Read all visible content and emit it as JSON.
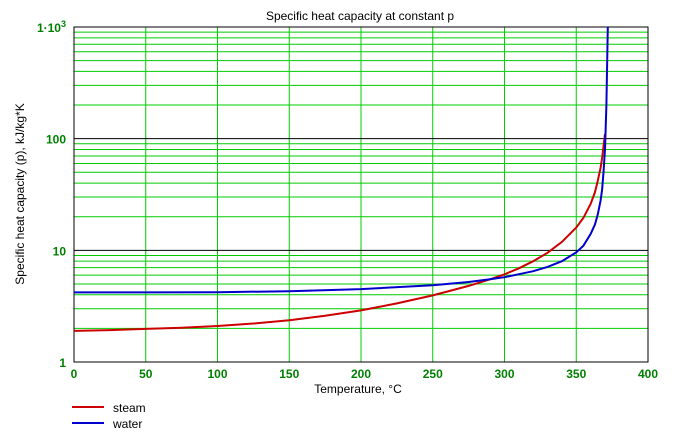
{
  "chart_data": {
    "type": "line",
    "title": "Specific heat capacity at constant p",
    "xlabel": "Temperature, °C",
    "ylabel": "Specific heat capacity (p), kJ/kg*K",
    "xlim": [
      0,
      400
    ],
    "ylim": [
      1,
      1000
    ],
    "y_scale": "log",
    "grid": true,
    "x_ticks": [
      "0",
      "50",
      "100",
      "150",
      "200",
      "250",
      "300",
      "350",
      "400"
    ],
    "y_ticks": [
      {
        "value": 1,
        "label": "1"
      },
      {
        "value": 10,
        "label": "10"
      },
      {
        "value": 100,
        "label": "100"
      },
      {
        "value": 1000,
        "label": "1·10",
        "exponent": "3"
      }
    ],
    "legend_position": "bottom-left",
    "series": [
      {
        "name": "steam",
        "color": "#cc0000",
        "x": [
          0,
          25,
          50,
          75,
          100,
          125,
          150,
          175,
          200,
          225,
          250,
          275,
          290,
          300,
          310,
          320,
          330,
          340,
          350,
          355,
          360,
          363,
          365,
          367,
          368,
          369,
          370
        ],
        "y": [
          1.9,
          1.93,
          1.98,
          2.03,
          2.1,
          2.21,
          2.37,
          2.6,
          2.9,
          3.35,
          3.95,
          4.8,
          5.5,
          6.1,
          6.9,
          8.0,
          9.5,
          11.9,
          16.0,
          19.5,
          26.0,
          33.0,
          42.0,
          55.0,
          67.0,
          85.0,
          110.0
        ]
      },
      {
        "name": "water",
        "color": "#0000cc",
        "x": [
          0,
          50,
          100,
          150,
          200,
          250,
          275,
          290,
          300,
          320,
          330,
          340,
          350,
          355,
          360,
          363,
          365,
          367,
          368,
          369,
          370,
          371,
          372
        ],
        "y": [
          4.2,
          4.2,
          4.22,
          4.31,
          4.5,
          4.87,
          5.2,
          5.5,
          5.75,
          6.5,
          7.1,
          8.0,
          9.6,
          11.0,
          14.0,
          17.0,
          21.0,
          28.0,
          35.0,
          50.0,
          80.0,
          200.0,
          1000.0
        ]
      }
    ]
  }
}
